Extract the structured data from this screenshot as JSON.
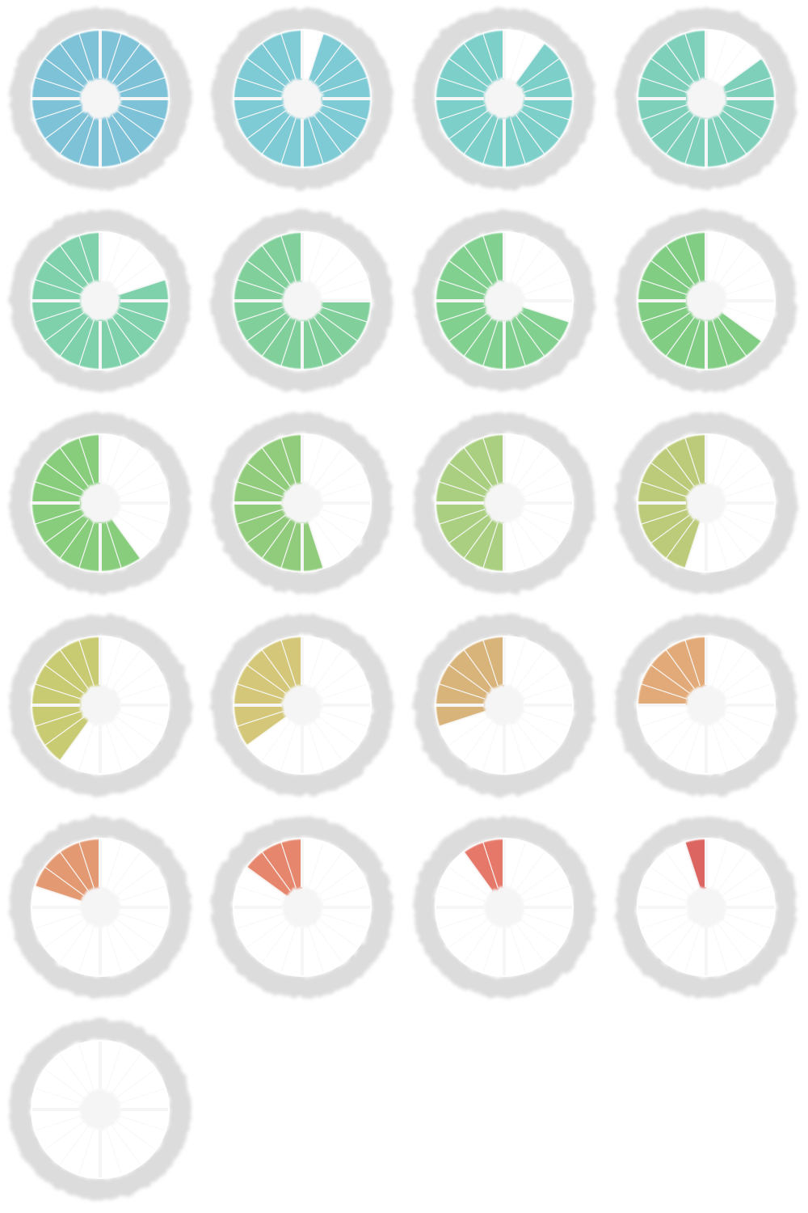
{
  "sprite_sheet": {
    "columns": 4,
    "segments": 20,
    "frames": [
      {
        "remaining": 20,
        "color": "#6cb9d3"
      },
      {
        "remaining": 19,
        "color": "#6cc3cf"
      },
      {
        "remaining": 18,
        "color": "#6bc8c3"
      },
      {
        "remaining": 17,
        "color": "#6ccab2"
      },
      {
        "remaining": 16,
        "color": "#6dcb9f"
      },
      {
        "remaining": 15,
        "color": "#6fca8e"
      },
      {
        "remaining": 14,
        "color": "#6fc97f"
      },
      {
        "remaining": 13,
        "color": "#70c672"
      },
      {
        "remaining": 12,
        "color": "#76c66a"
      },
      {
        "remaining": 11,
        "color": "#82c56a"
      },
      {
        "remaining": 10,
        "color": "#9ec86f"
      },
      {
        "remaining": 9,
        "color": "#b2c467"
      },
      {
        "remaining": 8,
        "color": "#c2c460"
      },
      {
        "remaining": 7,
        "color": "#cebf66"
      },
      {
        "remaining": 6,
        "color": "#d3a868"
      },
      {
        "remaining": 5,
        "color": "#df9e66"
      },
      {
        "remaining": 4,
        "color": "#df8b5f"
      },
      {
        "remaining": 3,
        "color": "#e27558"
      },
      {
        "remaining": 2,
        "color": "#e26454"
      },
      {
        "remaining": 1,
        "color": "#d8514c"
      },
      {
        "remaining": 0,
        "color": "#d8514c"
      }
    ],
    "ring_color": "#dcdcdc",
    "spoke_color": "#ffffff",
    "hub_color": "#f5f5f5"
  }
}
